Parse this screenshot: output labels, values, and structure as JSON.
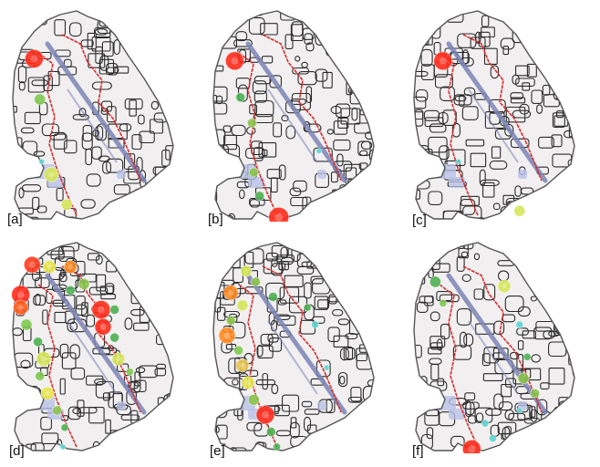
{
  "panels": [
    {
      "label": "[a]",
      "markers": [
        {
          "u": 0.14,
          "v": 0.24,
          "r": 10,
          "color": "#ff2a1a"
        },
        {
          "u": 0.17,
          "v": 0.43,
          "r": 6,
          "color": "#7dc94e"
        },
        {
          "u": 0.23,
          "v": 0.78,
          "r": 8,
          "color": "#d6e65a"
        },
        {
          "u": 0.31,
          "v": 0.92,
          "r": 6,
          "color": "#d6e65a"
        },
        {
          "u": 0.18,
          "v": 0.72,
          "r": 3,
          "color": "#5fd3d0"
        }
      ]
    },
    {
      "label": "[b]",
      "markers": [
        {
          "u": 0.14,
          "v": 0.25,
          "r": 10,
          "color": "#ff2a1a"
        },
        {
          "u": 0.17,
          "v": 0.42,
          "r": 5,
          "color": "#4caf50"
        },
        {
          "u": 0.23,
          "v": 0.54,
          "r": 5,
          "color": "#8bc34a"
        },
        {
          "u": 0.24,
          "v": 0.77,
          "r": 5,
          "color": "#8bc34a"
        },
        {
          "u": 0.27,
          "v": 0.88,
          "r": 5,
          "color": "#4caf50"
        },
        {
          "u": 0.37,
          "v": 0.98,
          "r": 11,
          "color": "#ff2a1a"
        },
        {
          "u": 0.58,
          "v": 0.67,
          "r": 3,
          "color": "#5fd3d0"
        }
      ]
    },
    {
      "label": "[c]",
      "markers": [
        {
          "u": 0.18,
          "v": 0.25,
          "r": 10,
          "color": "#ff2a1a"
        },
        {
          "u": 0.26,
          "v": 0.72,
          "r": 3,
          "color": "#5fd3d0"
        },
        {
          "u": 0.58,
          "v": 0.95,
          "r": 6,
          "color": "#d6e65a"
        }
      ]
    },
    {
      "label": "[d]",
      "markers": [
        {
          "u": 0.13,
          "v": 0.12,
          "r": 9,
          "color": "#ff3b1f"
        },
        {
          "u": 0.22,
          "v": 0.13,
          "r": 7,
          "color": "#e6e34a"
        },
        {
          "u": 0.33,
          "v": 0.13,
          "r": 7,
          "color": "#ff8a1f"
        },
        {
          "u": 0.4,
          "v": 0.21,
          "r": 6,
          "color": "#8bc34a"
        },
        {
          "u": 0.33,
          "v": 0.24,
          "r": 5,
          "color": "#4caf50"
        },
        {
          "u": 0.07,
          "v": 0.26,
          "r": 10,
          "color": "#ff2a1a"
        },
        {
          "u": 0.07,
          "v": 0.32,
          "r": 8,
          "color": "#ff5a1a"
        },
        {
          "u": 0.1,
          "v": 0.4,
          "r": 6,
          "color": "#7dc94e"
        },
        {
          "u": 0.49,
          "v": 0.33,
          "r": 10,
          "color": "#ff2a1a"
        },
        {
          "u": 0.5,
          "v": 0.41,
          "r": 9,
          "color": "#ff2a1a"
        },
        {
          "u": 0.56,
          "v": 0.33,
          "r": 5,
          "color": "#4caf50"
        },
        {
          "u": 0.16,
          "v": 0.48,
          "r": 5,
          "color": "#4caf50"
        },
        {
          "u": 0.19,
          "v": 0.56,
          "r": 8,
          "color": "#d6e65a"
        },
        {
          "u": 0.17,
          "v": 0.64,
          "r": 5,
          "color": "#7dc94e"
        },
        {
          "u": 0.21,
          "v": 0.72,
          "r": 7,
          "color": "#e6e34a"
        },
        {
          "u": 0.26,
          "v": 0.8,
          "r": 5,
          "color": "#8bc34a"
        },
        {
          "u": 0.3,
          "v": 0.88,
          "r": 4,
          "color": "#4caf50"
        },
        {
          "u": 0.56,
          "v": 0.46,
          "r": 5,
          "color": "#4caf50"
        },
        {
          "u": 0.58,
          "v": 0.56,
          "r": 7,
          "color": "#d6e65a"
        },
        {
          "u": 0.64,
          "v": 0.62,
          "r": 4,
          "color": "#7dc94e"
        },
        {
          "u": 0.29,
          "v": 0.97,
          "r": 3,
          "color": "#5fd3d0"
        }
      ]
    },
    {
      "label": "[e]",
      "markers": [
        {
          "u": 0.2,
          "v": 0.15,
          "r": 6,
          "color": "#d6e65a"
        },
        {
          "u": 0.25,
          "v": 0.2,
          "r": 5,
          "color": "#8bc34a"
        },
        {
          "u": 0.12,
          "v": 0.25,
          "r": 8,
          "color": "#ff8a1f"
        },
        {
          "u": 0.18,
          "v": 0.31,
          "r": 6,
          "color": "#d6e65a"
        },
        {
          "u": 0.34,
          "v": 0.27,
          "r": 5,
          "color": "#4caf50"
        },
        {
          "u": 0.12,
          "v": 0.38,
          "r": 5,
          "color": "#8bc34a"
        },
        {
          "u": 0.1,
          "v": 0.45,
          "r": 9,
          "color": "#ff8a1f"
        },
        {
          "u": 0.16,
          "v": 0.52,
          "r": 5,
          "color": "#7dc94e"
        },
        {
          "u": 0.18,
          "v": 0.59,
          "r": 7,
          "color": "#e6c34a"
        },
        {
          "u": 0.21,
          "v": 0.67,
          "r": 7,
          "color": "#e6e34a"
        },
        {
          "u": 0.24,
          "v": 0.75,
          "r": 6,
          "color": "#8bc34a"
        },
        {
          "u": 0.3,
          "v": 0.82,
          "r": 10,
          "color": "#ff2a1a"
        },
        {
          "u": 0.33,
          "v": 0.9,
          "r": 5,
          "color": "#4caf50"
        },
        {
          "u": 0.36,
          "v": 0.97,
          "r": 4,
          "color": "#4caf50"
        },
        {
          "u": 0.52,
          "v": 0.32,
          "r": 4,
          "color": "#4caf50"
        },
        {
          "u": 0.56,
          "v": 0.4,
          "r": 4,
          "color": "#5fd3d0"
        },
        {
          "u": 0.62,
          "v": 0.6,
          "r": 3,
          "color": "#5fd3d0"
        }
      ]
    },
    {
      "label": "[f]",
      "markers": [
        {
          "u": 0.14,
          "v": 0.2,
          "r": 6,
          "color": "#4caf50"
        },
        {
          "u": 0.18,
          "v": 0.3,
          "r": 4,
          "color": "#7dc94e"
        },
        {
          "u": 0.5,
          "v": 0.22,
          "r": 7,
          "color": "#d6e65a"
        },
        {
          "u": 0.58,
          "v": 0.4,
          "r": 4,
          "color": "#5fd3d0"
        },
        {
          "u": 0.62,
          "v": 0.55,
          "r": 4,
          "color": "#4caf50"
        },
        {
          "u": 0.6,
          "v": 0.65,
          "r": 6,
          "color": "#8bc34a"
        },
        {
          "u": 0.66,
          "v": 0.72,
          "r": 5,
          "color": "#8bc34a"
        },
        {
          "u": 0.58,
          "v": 0.8,
          "r": 3,
          "color": "#5fd3d0"
        },
        {
          "u": 0.4,
          "v": 0.86,
          "r": 4,
          "color": "#5fd3d0"
        },
        {
          "u": 0.44,
          "v": 0.93,
          "r": 4,
          "color": "#5fd3d0"
        },
        {
          "u": 0.33,
          "v": 0.98,
          "r": 10,
          "color": "#ff2a1a"
        }
      ]
    }
  ],
  "colors": {
    "district_fill": "#f1eff0",
    "district_outline": "#555555",
    "street_network": "#2b2b2b",
    "avenue": "#7b84b5",
    "route": "#d22f2f",
    "water": "#b9c2e6",
    "label": "#111111"
  }
}
